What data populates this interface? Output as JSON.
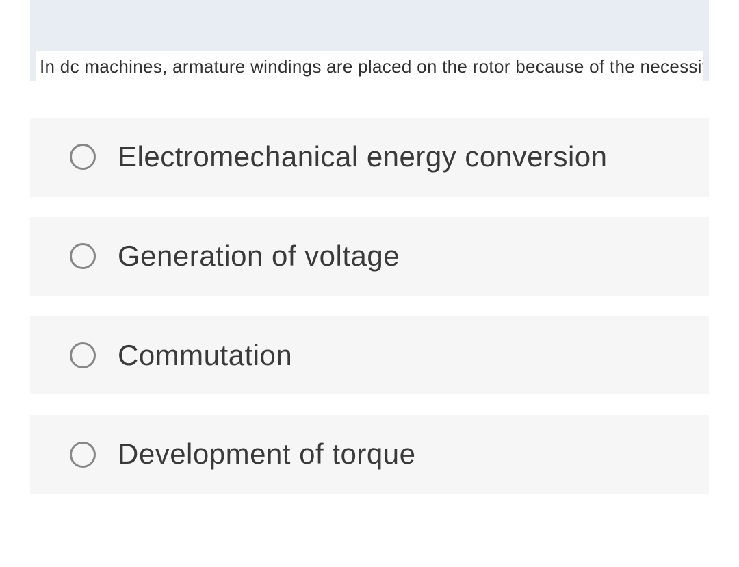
{
  "question": {
    "text": "In dc machines, armature windings are placed on the rotor because of the necessity for",
    "background_color": "#e8edf3",
    "textbox_color": "#ffffff",
    "text_color": "#303030",
    "font_size": 26
  },
  "options": [
    {
      "label": "Electromechanical energy conversion",
      "selected": false
    },
    {
      "label": "Generation of voltage",
      "selected": false
    },
    {
      "label": "Commutation",
      "selected": false
    },
    {
      "label": "Development of torque",
      "selected": false
    }
  ],
  "styles": {
    "option_background": "#f6f6f6",
    "option_text_color": "#3a3a3a",
    "option_font_size": 42,
    "radio_border_color": "#878787",
    "radio_size": 38,
    "radio_border_width": 3,
    "gap_between_options": 30,
    "container_padding": 44
  }
}
